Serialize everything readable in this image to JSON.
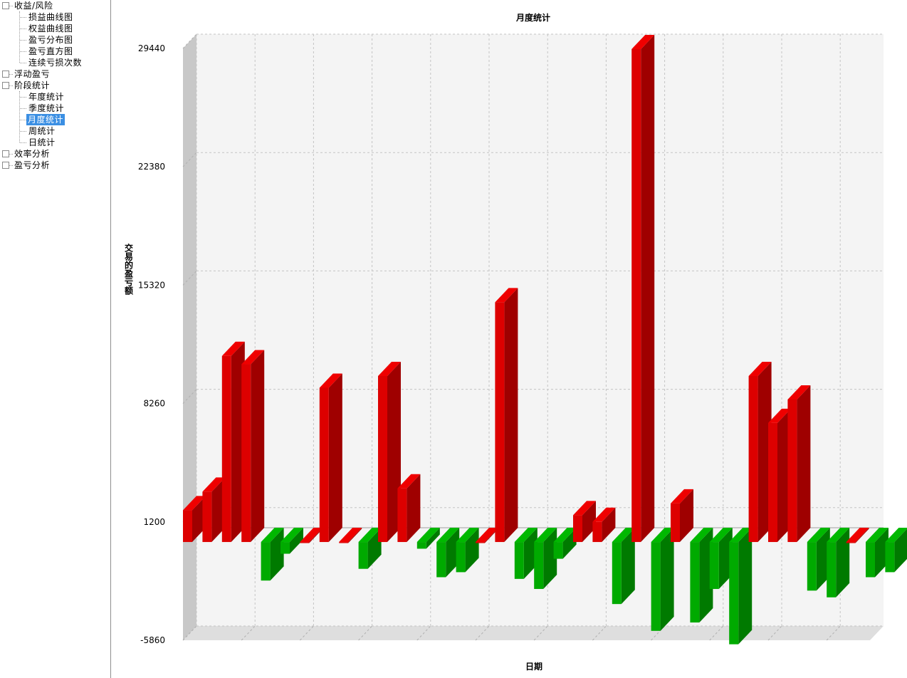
{
  "sidebar": {
    "items": [
      {
        "label": "收益/风险",
        "toggle": "−"
      },
      {
        "label": "损益曲线图"
      },
      {
        "label": "权益曲线图"
      },
      {
        "label": "盈亏分布图"
      },
      {
        "label": "盈亏直方图"
      },
      {
        "label": "连续亏损次数"
      },
      {
        "label": "浮动盈亏",
        "toggle": "+"
      },
      {
        "label": "阶段统计",
        "toggle": "−"
      },
      {
        "label": "年度统计"
      },
      {
        "label": "季度统计"
      },
      {
        "label": "月度统计",
        "selected": true
      },
      {
        "label": "周统计"
      },
      {
        "label": "日统计"
      },
      {
        "label": "效率分析",
        "toggle": "+"
      },
      {
        "label": "盈亏分析",
        "toggle": "+"
      }
    ]
  },
  "chart_data": {
    "type": "bar",
    "title": "月度统计",
    "xlabel": "日期",
    "ylabel": "交易的盈亏额",
    "ylim": [
      -5860,
      29440
    ],
    "yticks": [
      -5860,
      1200,
      8260,
      15320,
      22380,
      29440
    ],
    "grid": true,
    "colors": {
      "positive": "#dd0000",
      "negative": "#00aa00"
    },
    "values": [
      1900,
      3000,
      11100,
      10600,
      -2300,
      -700,
      0,
      9200,
      0,
      -1600,
      9900,
      3200,
      -400,
      -2100,
      -1800,
      0,
      14300,
      -2200,
      -2800,
      -1000,
      1600,
      1200,
      -3700,
      29400,
      -5300,
      2300,
      -4800,
      -2800,
      -6100,
      9900,
      7100,
      8500,
      -2900,
      -3300,
      0,
      -2100,
      -1800
    ]
  }
}
